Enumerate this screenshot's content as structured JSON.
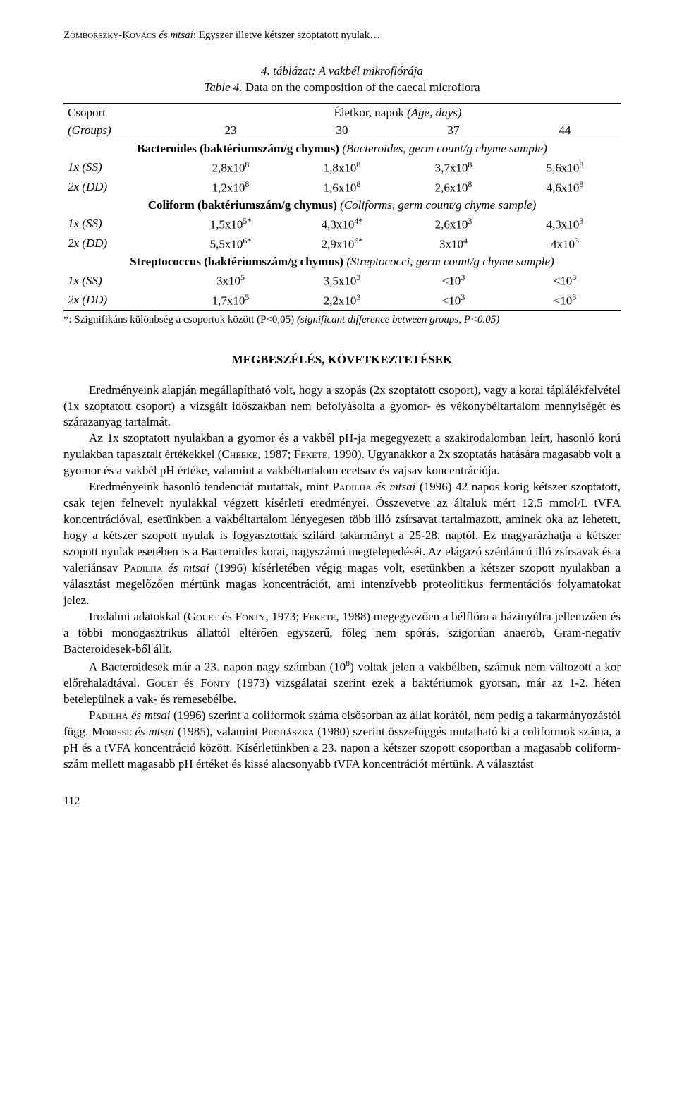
{
  "header": {
    "authors": "Zomborszky-Kovács",
    "etal": " és mtsai",
    "title_rest": ": Egyszer illetve kétszer szoptatott nyulak…"
  },
  "table": {
    "caption_line1_prefix": "4. táblázat",
    "caption_line1_rest": ": A vakbél mikroflórája",
    "caption_line2_prefix": "Table 4.",
    "caption_line2_rest": " Data on the composition of the caecal microflora",
    "header": {
      "group_label": "Csoport",
      "group_en": "(Groups)",
      "age_label": "Életkor, napok ",
      "age_en": "(Age, days)",
      "ages": [
        "23",
        "30",
        "37",
        "44"
      ]
    },
    "sections": [
      {
        "title_bold": "Bacteroides (baktériumszám/g chymus)",
        "title_italic": " (Bacteroides, germ count/g chyme sample)",
        "rows": [
          {
            "label": "1x (SS)",
            "values": [
              "2,8x10⁸",
              "1,8x10⁸",
              "3,7x10⁸",
              "5,6x10⁸"
            ]
          },
          {
            "label": "2x (DD)",
            "values": [
              "1,2x10⁸",
              "1,6x10⁸",
              "2,6x10⁸",
              "4,6x10⁸"
            ]
          }
        ]
      },
      {
        "title_bold": "Coliform (baktériumszám/g chymus)",
        "title_italic": " (Coliforms, germ count/g chyme sample)",
        "rows": [
          {
            "label": "1x (SS)",
            "values": [
              "1,5x10⁵*",
              "4,3x10⁴*",
              "2,6x10³",
              "4,3x10³"
            ]
          },
          {
            "label": "2x (DD)",
            "values": [
              "5,5x10⁶*",
              "2,9x10⁶*",
              "3x10⁴",
              "4x10³"
            ]
          }
        ]
      },
      {
        "title_bold": "Streptococcus (baktériumszám/g chymus)",
        "title_italic": " (Streptococci, germ count/g chyme sample)",
        "rows": [
          {
            "label": "1x (SS)",
            "values": [
              "3x10⁵",
              "3,5x10³",
              "<10³",
              "<10³"
            ]
          },
          {
            "label": "2x (DD)",
            "values": [
              "1,7x10⁵",
              "2,2x10³",
              "<10³",
              "<10³"
            ]
          }
        ]
      }
    ],
    "footnote_prefix": "*: Szignifikáns különbség a csoportok között (P<0,05) ",
    "footnote_italic": "(significant difference between groups, P<0.05)"
  },
  "section_heading": "MEGBESZÉLÉS, KÖVETKEZTETÉSEK",
  "paragraphs": [
    "Eredményeink alapján megállapítható volt, hogy a szopás (2x szoptatott csoport), vagy a korai táplálékfelvétel (1x szoptatott csoport) a vizsgált időszakban nem befolyásolta a gyomor- és vékonybéltartalom mennyiségét és szárazanyag tartalmát.",
    "Az 1x szoptatott nyulakban a gyomor és a vakbél pH-ja megegyezett a szakirodalomban leírt, hasonló korú nyulakban tapasztalt értékekkel (<sc>Cheeke</sc>, 1987; <sc>Fekete</sc>, 1990). Ugyanakkor a 2x szoptatás hatására magasabb volt a gyomor és a vakbél pH értéke, valamint a vakbéltartalom ecetsav és vajsav koncentrációja.",
    "Eredményeink hasonló tendenciát mutattak, mint <sc>Padilha</sc> <i>és mtsai</i> (1996) 42 napos korig kétszer szoptatott, csak tejen felnevelt nyulakkal végzett kísérleti eredményei. Összevetve az általuk mért 12,5 mmol/L tVFA koncentrációval, esetünkben a vakbéltartalom lényegesen több illó zsírsavat tartalmazott, aminek oka az lehetett, hogy a kétszer szopott nyulak is fogyasztottak szilárd takarmányt a 25-28. naptól. Ez magyarázhatja a kétszer szopott nyulak esetében is a Bacteroides korai, nagyszámú megtelepedését. Az elágazó szénláncú illó zsírsavak és a valeriánsav <sc>Padilha</sc> <i>és mtsai</i> (1996) kísérletében végig magas volt, esetünkben a kétszer szopott nyulakban a választást megelőzően mértünk magas koncentrációt, ami intenzívebb proteolitikus fermentációs folyamatokat jelez.",
    "Irodalmi adatokkal (<sc>Gouet</sc> és <sc>Fonty</sc>, 1973; <sc>Fekete</sc>, 1988) megegyezően a bélflóra a házinyúlra jellemzően és a többi monogasztrikus állattól eltérően egyszerű, főleg nem spórás, szigorúan anaerob, Gram-negatív Bacteroidesek-ből állt.",
    "A Bacteroidesek már a 23. napon nagy számban (10⁸) voltak jelen a vakbélben, számuk nem változott a kor előrehaladtával. <sc>Gouet</sc> és <sc>Fonty</sc> (1973) vizsgálatai szerint ezek a baktériumok gyorsan, már az 1-2. héten betelepülnek a vak- és remesebélbe.",
    "<sc>Padilha</sc> <i>és mtsai</i> (1996) szerint a coliformok száma elsősorban az állat korától, nem pedig a takarmányozástól függ. <sc>Morisse</sc> <i>és mtsai</i> (1985), valamint <sc>Prohászka</sc> (1980) szerint összefüggés mutatható ki a coliformok száma, a pH és a tVFA koncentráció között. Kísérletünkben a 23. napon a kétszer szopott csoportban a magasabb coliform-szám mellett magasabb pH értéket és kissé alacsonyabb tVFA koncentrációt mértünk. A választást"
  ],
  "page_number": "112"
}
